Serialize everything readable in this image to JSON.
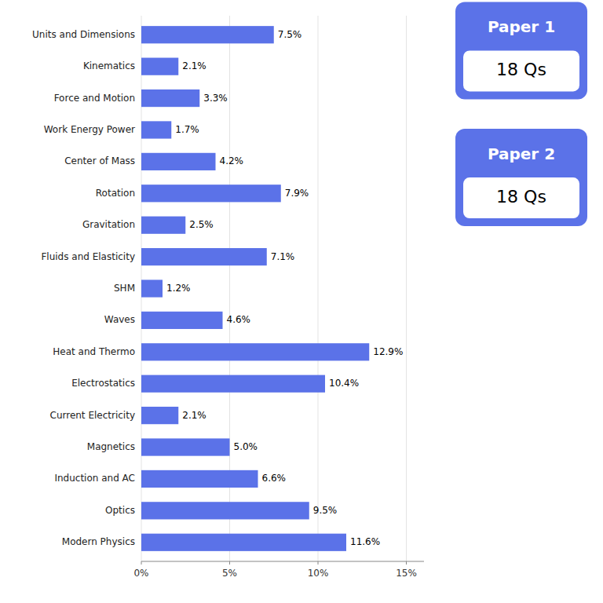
{
  "chart_data": {
    "type": "bar",
    "orientation": "horizontal",
    "categories": [
      "Modern Physics",
      "Optics",
      "Induction and AC",
      "Magnetics",
      "Current Electricity",
      "Electrostatics",
      "Heat and Thermo",
      "Waves",
      "SHM",
      "Fluids and Elasticity",
      "Gravitation",
      "Rotation",
      "Center of Mass",
      "Work Energy Power",
      "Force and Motion",
      "Kinematics",
      "Units and Dimensions"
    ],
    "values": [
      11.6,
      9.5,
      6.6,
      5.0,
      2.1,
      10.4,
      12.9,
      4.6,
      1.2,
      7.1,
      2.5,
      7.9,
      4.2,
      1.7,
      3.3,
      2.1,
      7.5
    ],
    "value_labels": [
      "11.6%",
      "9.5%",
      "6.6%",
      "5.0%",
      "2.1%",
      "10.4%",
      "12.9%",
      "4.6%",
      "1.2%",
      "7.1%",
      "2.5%",
      "7.9%",
      "4.2%",
      "1.7%",
      "3.3%",
      "2.1%",
      "7.5%"
    ],
    "data_labels": true,
    "color": "#5B72E8",
    "xlim": [
      0,
      16
    ],
    "xticks": [
      {
        "value": 0,
        "label": "0%"
      },
      {
        "value": 5,
        "label": "5%"
      },
      {
        "value": 10,
        "label": "10%"
      },
      {
        "value": 15,
        "label": "15%"
      }
    ],
    "grid": true,
    "annotations": [
      {
        "label": "Paper 1",
        "text": "18 Qs"
      },
      {
        "label": "Paper 2",
        "text": "18 Qs"
      }
    ]
  }
}
